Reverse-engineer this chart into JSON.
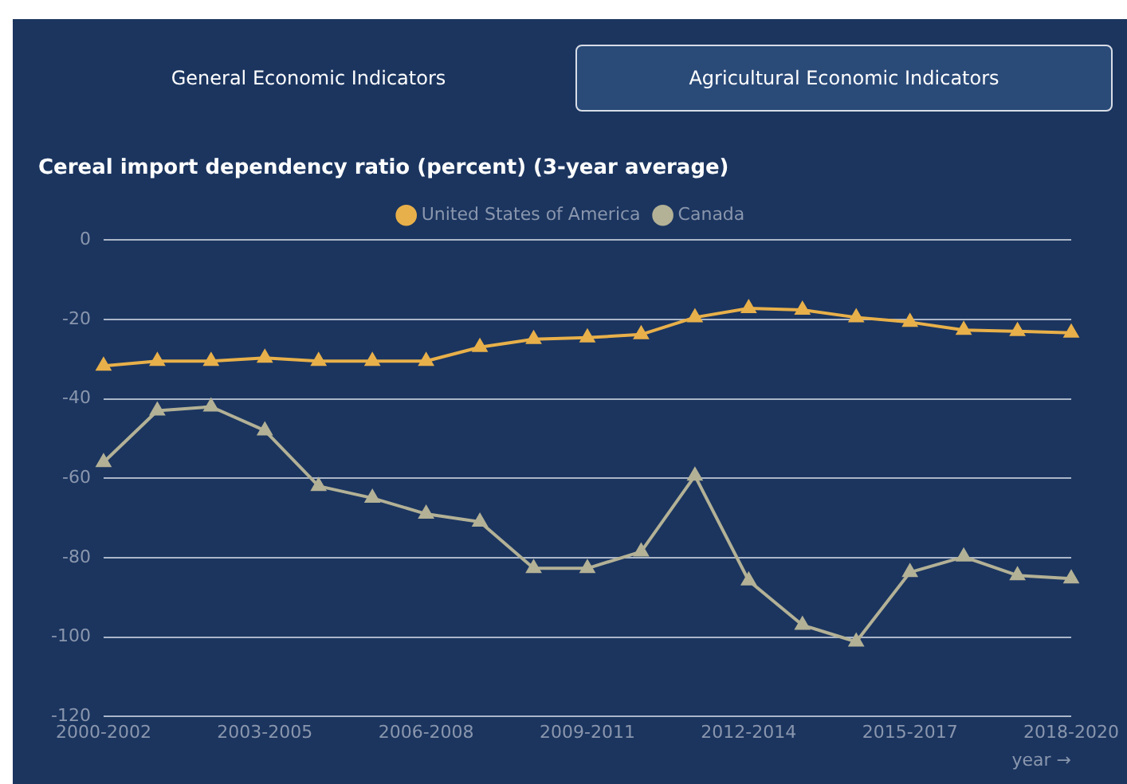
{
  "chart_data": {
    "type": "line",
    "title": "Cereal import dependency ratio (percent) (3-year average)",
    "xlabel": "year →",
    "annotations": [
      "General Economic Indicators",
      "Agricultural Economic Indicators"
    ],
    "categories": [
      "2000-2002",
      null,
      null,
      "2003-2005",
      null,
      null,
      "2006-2008",
      null,
      null,
      "2009-2011",
      null,
      null,
      "2012-2014",
      null,
      null,
      "2015-2017",
      null,
      null,
      "2018-2020"
    ],
    "series": [
      {
        "name": "United States of America",
        "color": "#e8b04a",
        "values": [
          -31.7,
          -30.5,
          -30.5,
          -29.7,
          -30.5,
          -30.5,
          -30.5,
          -27,
          -25,
          -24.6,
          -23.8,
          -19.5,
          -17.2,
          -17.6,
          -19.5,
          -20.7,
          -22.7,
          -23,
          -23.4
        ]
      },
      {
        "name": "Canada",
        "color": "#b3b196",
        "values": [
          -56,
          -43,
          -42,
          -48,
          -62,
          -65,
          -69,
          -71,
          -82.7,
          -82.7,
          -78.5,
          -59.4,
          -85.8,
          -97,
          -101.2,
          -83.7,
          -79.8,
          -84.5,
          -85.3
        ]
      }
    ],
    "ylim": [
      -120,
      0
    ],
    "yticks": [
      -120,
      -100,
      -80,
      -60,
      -40,
      -20,
      0
    ],
    "grid": "y",
    "legend": "top",
    "marker": "triangle",
    "line_style": "solid"
  }
}
